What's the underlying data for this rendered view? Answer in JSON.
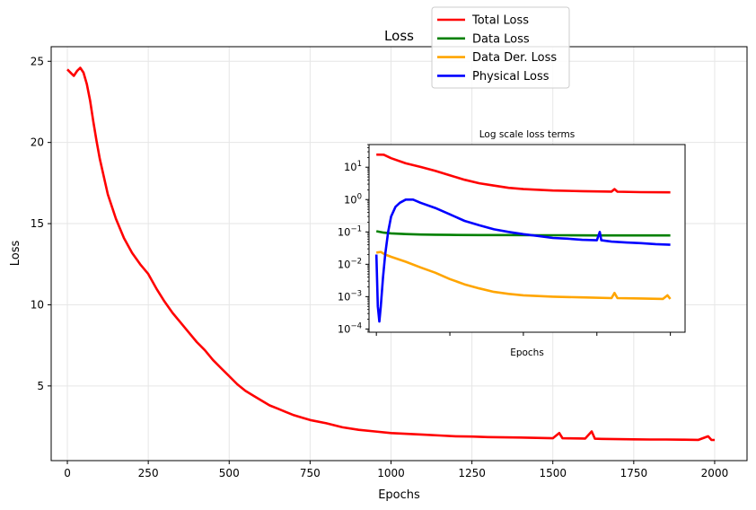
{
  "chart_data": [
    {
      "type": "line",
      "title": "Loss",
      "xlabel": "Epochs",
      "ylabel": "Loss",
      "xlim": [
        -50,
        2100
      ],
      "ylim": [
        0.4,
        25.9
      ],
      "xticks": [
        0,
        250,
        500,
        750,
        1000,
        1250,
        1500,
        1750,
        2000
      ],
      "yticks": [
        5,
        10,
        15,
        20,
        25
      ],
      "grid": true,
      "legend_position": "upper-center",
      "series": [
        {
          "name": "Total Loss",
          "color": "#ff0000",
          "points": [
            [
              0,
              24.5
            ],
            [
              10,
              24.3
            ],
            [
              20,
              24.1
            ],
            [
              30,
              24.4
            ],
            [
              40,
              24.6
            ],
            [
              50,
              24.3
            ],
            [
              60,
              23.6
            ],
            [
              70,
              22.6
            ],
            [
              80,
              21.3
            ],
            [
              90,
              20.1
            ],
            [
              100,
              19.0
            ],
            [
              125,
              16.8
            ],
            [
              150,
              15.3
            ],
            [
              175,
              14.1
            ],
            [
              200,
              13.2
            ],
            [
              225,
              12.5
            ],
            [
              250,
              11.9
            ],
            [
              275,
              11.0
            ],
            [
              300,
              10.2
            ],
            [
              325,
              9.5
            ],
            [
              350,
              8.9
            ],
            [
              375,
              8.3
            ],
            [
              400,
              7.7
            ],
            [
              425,
              7.2
            ],
            [
              450,
              6.6
            ],
            [
              475,
              6.1
            ],
            [
              500,
              5.6
            ],
            [
              525,
              5.1
            ],
            [
              550,
              4.7
            ],
            [
              575,
              4.4
            ],
            [
              600,
              4.1
            ],
            [
              625,
              3.8
            ],
            [
              650,
              3.6
            ],
            [
              675,
              3.4
            ],
            [
              700,
              3.2
            ],
            [
              725,
              3.05
            ],
            [
              750,
              2.9
            ],
            [
              800,
              2.7
            ],
            [
              850,
              2.45
            ],
            [
              900,
              2.3
            ],
            [
              950,
              2.2
            ],
            [
              1000,
              2.1
            ],
            [
              1050,
              2.05
            ],
            [
              1100,
              2.0
            ],
            [
              1150,
              1.95
            ],
            [
              1200,
              1.9
            ],
            [
              1250,
              1.88
            ],
            [
              1300,
              1.85
            ],
            [
              1350,
              1.83
            ],
            [
              1400,
              1.82
            ],
            [
              1450,
              1.8
            ],
            [
              1500,
              1.78
            ],
            [
              1520,
              2.1
            ],
            [
              1530,
              1.78
            ],
            [
              1550,
              1.77
            ],
            [
              1600,
              1.76
            ],
            [
              1620,
              2.2
            ],
            [
              1630,
              1.75
            ],
            [
              1650,
              1.74
            ],
            [
              1700,
              1.72
            ],
            [
              1750,
              1.71
            ],
            [
              1800,
              1.7
            ],
            [
              1850,
              1.7
            ],
            [
              1900,
              1.69
            ],
            [
              1950,
              1.68
            ],
            [
              1980,
              1.9
            ],
            [
              1990,
              1.68
            ],
            [
              2000,
              1.67
            ]
          ]
        }
      ]
    },
    {
      "type": "line",
      "title": "Log scale loss terms",
      "xlabel": "Epochs",
      "ylabel": "",
      "yscale": "log",
      "xlim": [
        -50,
        2100
      ],
      "ylim_log10": [
        -4.1,
        1.7
      ],
      "ytick_labels": [
        {
          "base": "10",
          "exp": "1",
          "value": 1
        },
        {
          "base": "10",
          "exp": "0",
          "value": 0
        },
        {
          "base": "10",
          "exp": "−1",
          "value": -1
        },
        {
          "base": "10",
          "exp": "−2",
          "value": -2
        },
        {
          "base": "10",
          "exp": "−3",
          "value": -3
        },
        {
          "base": "10",
          "exp": "−4",
          "value": -4
        }
      ],
      "xticks": [
        0,
        500,
        1000,
        1500,
        2000
      ],
      "xtick_labels_visible": false,
      "series": [
        {
          "name": "Total Loss",
          "color": "#ff0000",
          "points": [
            [
              0,
              24.5
            ],
            [
              50,
              24.3
            ],
            [
              100,
              19
            ],
            [
              200,
              13.2
            ],
            [
              300,
              10.2
            ],
            [
              400,
              7.7
            ],
            [
              500,
              5.6
            ],
            [
              600,
              4.1
            ],
            [
              700,
              3.2
            ],
            [
              800,
              2.7
            ],
            [
              900,
              2.3
            ],
            [
              1000,
              2.1
            ],
            [
              1200,
              1.9
            ],
            [
              1400,
              1.82
            ],
            [
              1600,
              1.76
            ],
            [
              1620,
              2.1
            ],
            [
              1640,
              1.75
            ],
            [
              1800,
              1.7
            ],
            [
              2000,
              1.67
            ]
          ]
        },
        {
          "name": "Data Loss",
          "color": "#008000",
          "points": [
            [
              0,
              0.105
            ],
            [
              50,
              0.095
            ],
            [
              100,
              0.09
            ],
            [
              200,
              0.086
            ],
            [
              300,
              0.083
            ],
            [
              400,
              0.082
            ],
            [
              500,
              0.081
            ],
            [
              700,
              0.08
            ],
            [
              900,
              0.08
            ],
            [
              1100,
              0.079
            ],
            [
              1300,
              0.079
            ],
            [
              1500,
              0.078
            ],
            [
              1700,
              0.078
            ],
            [
              2000,
              0.078
            ]
          ]
        },
        {
          "name": "Data Der. Loss",
          "color": "#ffa500",
          "points": [
            [
              0,
              0.023
            ],
            [
              30,
              0.024
            ],
            [
              60,
              0.02
            ],
            [
              100,
              0.017
            ],
            [
              200,
              0.012
            ],
            [
              300,
              0.008
            ],
            [
              400,
              0.0055
            ],
            [
              500,
              0.0035
            ],
            [
              600,
              0.0024
            ],
            [
              700,
              0.0018
            ],
            [
              800,
              0.0014
            ],
            [
              900,
              0.00122
            ],
            [
              1000,
              0.0011
            ],
            [
              1200,
              0.001
            ],
            [
              1400,
              0.00095
            ],
            [
              1600,
              0.0009
            ],
            [
              1620,
              0.0013
            ],
            [
              1640,
              0.0009
            ],
            [
              1800,
              0.00088
            ],
            [
              1950,
              0.00085
            ],
            [
              1980,
              0.0011
            ],
            [
              2000,
              0.00085
            ]
          ]
        },
        {
          "name": "Physical Loss",
          "color": "#0000ff",
          "points": [
            [
              0,
              0.02
            ],
            [
              10,
              0.0005
            ],
            [
              20,
              0.00017
            ],
            [
              30,
              0.0005
            ],
            [
              45,
              0.004
            ],
            [
              60,
              0.02
            ],
            [
              80,
              0.1
            ],
            [
              100,
              0.3
            ],
            [
              130,
              0.6
            ],
            [
              160,
              0.8
            ],
            [
              200,
              1.0
            ],
            [
              250,
              1.0
            ],
            [
              300,
              0.8
            ],
            [
              400,
              0.55
            ],
            [
              500,
              0.35
            ],
            [
              600,
              0.22
            ],
            [
              700,
              0.16
            ],
            [
              800,
              0.12
            ],
            [
              900,
              0.1
            ],
            [
              1000,
              0.085
            ],
            [
              1100,
              0.075
            ],
            [
              1200,
              0.065
            ],
            [
              1300,
              0.062
            ],
            [
              1400,
              0.057
            ],
            [
              1500,
              0.055
            ],
            [
              1520,
              0.1
            ],
            [
              1530,
              0.055
            ],
            [
              1600,
              0.05
            ],
            [
              1700,
              0.047
            ],
            [
              1800,
              0.045
            ],
            [
              1900,
              0.042
            ],
            [
              2000,
              0.04
            ]
          ]
        }
      ]
    }
  ],
  "legend": [
    {
      "label": "Total Loss",
      "color": "#ff0000"
    },
    {
      "label": "Data Loss",
      "color": "#008000"
    },
    {
      "label": "Data Der. Loss",
      "color": "#ffa500"
    },
    {
      "label": "Physical Loss",
      "color": "#0000ff"
    }
  ]
}
